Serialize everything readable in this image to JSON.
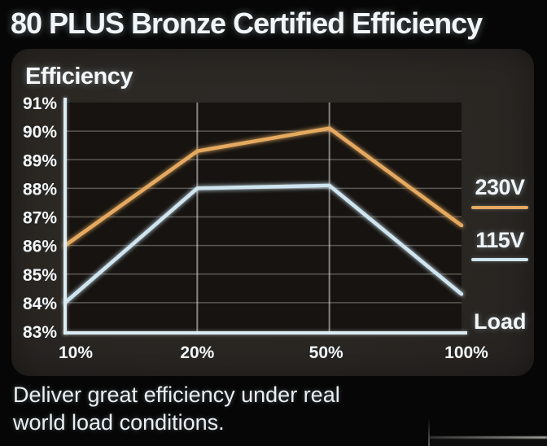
{
  "title": "80 PLUS Bronze Certified Efficiency",
  "panel": {
    "heading": "Efficiency",
    "x_axis_label": "Load"
  },
  "legend": [
    {
      "label": "230V",
      "color": "#e5aa60"
    },
    {
      "label": "115V",
      "color": "#cfe5f0"
    }
  ],
  "footer": {
    "lines": [
      "Deliver great efficiency under real",
      "world load conditions."
    ]
  },
  "colors": {
    "series_230v": "#e5aa60",
    "series_115v": "#cfe5f0",
    "axis": "#dcecf2",
    "panel_background": "#2a2723",
    "plot_background": "#161310",
    "page_background": "#060606",
    "text": "#f1f6f8"
  },
  "chart_data": {
    "type": "line",
    "title": "Efficiency",
    "xlabel": "Load",
    "ylabel": "Efficiency",
    "categories": [
      "10%",
      "20%",
      "50%",
      "100%"
    ],
    "series": [
      {
        "name": "230V",
        "color": "#e5aa60",
        "values": [
          86.0,
          89.3,
          90.1,
          86.7
        ]
      },
      {
        "name": "115V",
        "color": "#cfe5f0",
        "values": [
          84.0,
          88.0,
          88.1,
          84.3
        ]
      }
    ],
    "ylim": [
      83,
      91
    ],
    "y_ticks": [
      "91%",
      "90%",
      "89%",
      "88%",
      "87%",
      "86%",
      "85%",
      "84%",
      "83%"
    ],
    "grid": true,
    "legend_position": "right"
  }
}
